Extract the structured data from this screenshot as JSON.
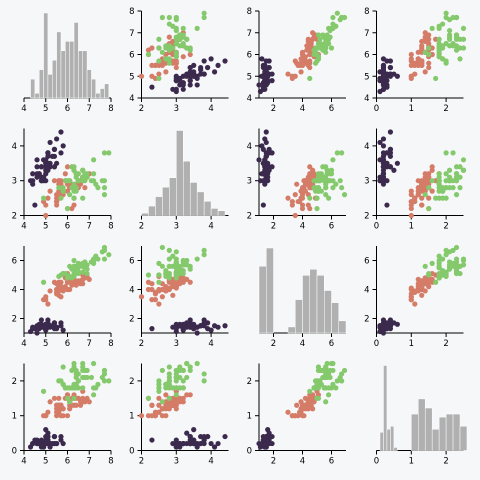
{
  "chart_data": {
    "type": "scatter",
    "layout": "scatter-matrix",
    "variables": [
      "var0",
      "var1",
      "var2",
      "var3"
    ],
    "groups": [
      {
        "id": "g0",
        "color": "#3b2a4d"
      },
      {
        "id": "g1",
        "color": "#d47c67"
      },
      {
        "id": "g2",
        "color": "#84c96b"
      }
    ],
    "axes": [
      {
        "domain": [
          4,
          8
        ],
        "ticks": [
          4,
          5,
          6,
          7,
          8
        ]
      },
      {
        "domain": [
          2,
          4.5
        ],
        "ticks": [
          2,
          3,
          4
        ]
      },
      {
        "domain": [
          1,
          7
        ],
        "ticks": [
          2,
          4,
          6
        ]
      },
      {
        "domain": [
          0,
          2.5
        ],
        "ticks": [
          0,
          1,
          2
        ]
      }
    ],
    "histograms": [
      {
        "variable": 0,
        "bins": [
          [
            4.3,
            4.5,
            4
          ],
          [
            4.5,
            4.7,
            1
          ],
          [
            4.7,
            4.9,
            6
          ],
          [
            4.9,
            5.1,
            18
          ],
          [
            5.1,
            5.3,
            5
          ],
          [
            5.3,
            5.5,
            8
          ],
          [
            5.5,
            5.7,
            14
          ],
          [
            5.7,
            5.9,
            10
          ],
          [
            5.9,
            6.1,
            12
          ],
          [
            6.1,
            6.3,
            12
          ],
          [
            6.3,
            6.5,
            16
          ],
          [
            6.5,
            6.7,
            10
          ],
          [
            6.7,
            6.9,
            10
          ],
          [
            6.9,
            7.1,
            6
          ],
          [
            7.1,
            7.3,
            4
          ],
          [
            7.3,
            7.5,
            1
          ],
          [
            7.5,
            7.7,
            2
          ],
          [
            7.7,
            7.9,
            3
          ]
        ]
      },
      {
        "variable": 1,
        "bins": [
          [
            2.0,
            2.2,
            1
          ],
          [
            2.2,
            2.4,
            4
          ],
          [
            2.4,
            2.6,
            8
          ],
          [
            2.6,
            2.8,
            12
          ],
          [
            2.8,
            3.0,
            16
          ],
          [
            3.0,
            3.2,
            36
          ],
          [
            3.2,
            3.4,
            23
          ],
          [
            3.4,
            3.6,
            14
          ],
          [
            3.6,
            3.8,
            10
          ],
          [
            3.8,
            4.0,
            6
          ],
          [
            4.0,
            4.2,
            3
          ],
          [
            4.2,
            4.4,
            2
          ]
        ]
      },
      {
        "variable": 2,
        "bins": [
          [
            1,
            1.5,
            22
          ],
          [
            1.5,
            2,
            28
          ],
          [
            2,
            2.5,
            0
          ],
          [
            2.5,
            3,
            0
          ],
          [
            3,
            3.5,
            2
          ],
          [
            3.5,
            4,
            11
          ],
          [
            4,
            4.5,
            19
          ],
          [
            4.5,
            5,
            21
          ],
          [
            5,
            5.5,
            19
          ],
          [
            5.5,
            6,
            14
          ],
          [
            6,
            6.5,
            10
          ],
          [
            6.5,
            7,
            4
          ]
        ]
      },
      {
        "variable": 3,
        "bins": [
          [
            0.1,
            0.2,
            6
          ],
          [
            0.2,
            0.3,
            28
          ],
          [
            0.3,
            0.4,
            7
          ],
          [
            0.4,
            0.5,
            8
          ],
          [
            0.5,
            0.6,
            1
          ],
          [
            0.6,
            0.8,
            0
          ],
          [
            1.0,
            1.2,
            12
          ],
          [
            1.2,
            1.4,
            17
          ],
          [
            1.4,
            1.6,
            14
          ],
          [
            1.6,
            1.8,
            7
          ],
          [
            1.8,
            2.0,
            11
          ],
          [
            2.0,
            2.2,
            12
          ],
          [
            2.2,
            2.4,
            12
          ],
          [
            2.4,
            2.6,
            8
          ]
        ]
      }
    ],
    "points": [
      [
        5.1,
        3.5,
        1.4,
        0.2,
        0
      ],
      [
        4.9,
        3.0,
        1.4,
        0.2,
        0
      ],
      [
        4.7,
        3.2,
        1.3,
        0.2,
        0
      ],
      [
        4.6,
        3.1,
        1.5,
        0.2,
        0
      ],
      [
        5.0,
        3.6,
        1.4,
        0.2,
        0
      ],
      [
        5.4,
        3.9,
        1.7,
        0.4,
        0
      ],
      [
        4.6,
        3.4,
        1.4,
        0.3,
        0
      ],
      [
        5.0,
        3.4,
        1.5,
        0.2,
        0
      ],
      [
        4.4,
        2.9,
        1.4,
        0.2,
        0
      ],
      [
        4.9,
        3.1,
        1.5,
        0.1,
        0
      ],
      [
        5.4,
        3.7,
        1.5,
        0.2,
        0
      ],
      [
        4.8,
        3.4,
        1.6,
        0.2,
        0
      ],
      [
        4.8,
        3.0,
        1.4,
        0.1,
        0
      ],
      [
        4.3,
        3.0,
        1.1,
        0.1,
        0
      ],
      [
        5.8,
        4.0,
        1.2,
        0.2,
        0
      ],
      [
        5.7,
        4.4,
        1.5,
        0.4,
        0
      ],
      [
        5.4,
        3.9,
        1.3,
        0.4,
        0
      ],
      [
        5.1,
        3.5,
        1.4,
        0.3,
        0
      ],
      [
        5.7,
        3.8,
        1.7,
        0.3,
        0
      ],
      [
        5.1,
        3.8,
        1.5,
        0.3,
        0
      ],
      [
        5.4,
        3.4,
        1.7,
        0.2,
        0
      ],
      [
        5.1,
        3.7,
        1.5,
        0.4,
        0
      ],
      [
        4.6,
        3.6,
        1.0,
        0.2,
        0
      ],
      [
        5.1,
        3.3,
        1.7,
        0.5,
        0
      ],
      [
        4.8,
        3.4,
        1.9,
        0.2,
        0
      ],
      [
        5.0,
        3.0,
        1.6,
        0.2,
        0
      ],
      [
        5.0,
        3.4,
        1.6,
        0.4,
        0
      ],
      [
        5.2,
        3.5,
        1.5,
        0.2,
        0
      ],
      [
        5.2,
        3.4,
        1.4,
        0.2,
        0
      ],
      [
        4.7,
        3.2,
        1.6,
        0.2,
        0
      ],
      [
        4.8,
        3.1,
        1.6,
        0.2,
        0
      ],
      [
        5.4,
        3.4,
        1.5,
        0.4,
        0
      ],
      [
        5.2,
        4.1,
        1.5,
        0.1,
        0
      ],
      [
        5.5,
        4.2,
        1.4,
        0.2,
        0
      ],
      [
        4.9,
        3.1,
        1.5,
        0.2,
        0
      ],
      [
        5.0,
        3.2,
        1.2,
        0.2,
        0
      ],
      [
        5.5,
        3.5,
        1.3,
        0.2,
        0
      ],
      [
        4.9,
        3.6,
        1.4,
        0.1,
        0
      ],
      [
        4.4,
        3.0,
        1.3,
        0.2,
        0
      ],
      [
        5.1,
        3.4,
        1.5,
        0.2,
        0
      ],
      [
        5.0,
        3.5,
        1.3,
        0.3,
        0
      ],
      [
        4.5,
        2.3,
        1.3,
        0.3,
        0
      ],
      [
        4.4,
        3.2,
        1.3,
        0.2,
        0
      ],
      [
        5.0,
        3.5,
        1.6,
        0.6,
        0
      ],
      [
        5.1,
        3.8,
        1.9,
        0.4,
        0
      ],
      [
        4.8,
        3.0,
        1.4,
        0.3,
        0
      ],
      [
        5.1,
        3.8,
        1.6,
        0.2,
        0
      ],
      [
        4.6,
        3.2,
        1.4,
        0.2,
        0
      ],
      [
        5.3,
        3.7,
        1.5,
        0.2,
        0
      ],
      [
        5.0,
        3.3,
        1.4,
        0.2,
        0
      ],
      [
        7.0,
        3.2,
        4.7,
        1.4,
        1
      ],
      [
        6.4,
        3.2,
        4.5,
        1.5,
        1
      ],
      [
        6.9,
        3.1,
        4.9,
        1.5,
        1
      ],
      [
        5.5,
        2.3,
        4.0,
        1.3,
        1
      ],
      [
        6.5,
        2.8,
        4.6,
        1.5,
        1
      ],
      [
        5.7,
        2.8,
        4.5,
        1.3,
        1
      ],
      [
        6.3,
        3.3,
        4.7,
        1.6,
        1
      ],
      [
        4.9,
        2.4,
        3.3,
        1.0,
        1
      ],
      [
        6.6,
        2.9,
        4.6,
        1.3,
        1
      ],
      [
        5.2,
        2.7,
        3.9,
        1.4,
        1
      ],
      [
        5.0,
        2.0,
        3.5,
        1.0,
        1
      ],
      [
        5.9,
        3.0,
        4.2,
        1.5,
        1
      ],
      [
        6.0,
        2.2,
        4.0,
        1.0,
        1
      ],
      [
        6.1,
        2.9,
        4.7,
        1.4,
        1
      ],
      [
        5.6,
        2.9,
        3.6,
        1.3,
        1
      ],
      [
        6.7,
        3.1,
        4.4,
        1.4,
        1
      ],
      [
        5.6,
        3.0,
        4.5,
        1.5,
        1
      ],
      [
        5.8,
        2.7,
        4.1,
        1.0,
        1
      ],
      [
        6.2,
        2.2,
        4.5,
        1.5,
        1
      ],
      [
        5.6,
        2.5,
        3.9,
        1.1,
        1
      ],
      [
        5.9,
        3.2,
        4.8,
        1.8,
        1
      ],
      [
        6.1,
        2.8,
        4.0,
        1.3,
        1
      ],
      [
        6.3,
        2.5,
        4.9,
        1.5,
        1
      ],
      [
        6.1,
        2.8,
        4.7,
        1.2,
        1
      ],
      [
        6.4,
        2.9,
        4.3,
        1.3,
        1
      ],
      [
        6.6,
        3.0,
        4.4,
        1.4,
        1
      ],
      [
        6.8,
        2.8,
        4.8,
        1.4,
        1
      ],
      [
        6.7,
        3.0,
        5.0,
        1.7,
        1
      ],
      [
        6.0,
        2.9,
        4.5,
        1.5,
        1
      ],
      [
        5.7,
        2.6,
        3.5,
        1.0,
        1
      ],
      [
        5.5,
        2.4,
        3.8,
        1.1,
        1
      ],
      [
        5.5,
        2.4,
        3.7,
        1.0,
        1
      ],
      [
        5.8,
        2.7,
        3.9,
        1.2,
        1
      ],
      [
        6.0,
        2.7,
        5.1,
        1.6,
        1
      ],
      [
        5.4,
        3.0,
        4.5,
        1.5,
        1
      ],
      [
        6.0,
        3.4,
        4.5,
        1.6,
        1
      ],
      [
        6.7,
        3.1,
        4.7,
        1.5,
        1
      ],
      [
        6.3,
        2.3,
        4.4,
        1.3,
        1
      ],
      [
        5.6,
        3.0,
        4.1,
        1.3,
        1
      ],
      [
        5.5,
        2.5,
        4.0,
        1.3,
        1
      ],
      [
        5.5,
        2.6,
        4.4,
        1.2,
        1
      ],
      [
        6.1,
        3.0,
        4.6,
        1.4,
        1
      ],
      [
        5.8,
        2.6,
        4.0,
        1.2,
        1
      ],
      [
        5.0,
        2.3,
        3.3,
        1.0,
        1
      ],
      [
        5.6,
        2.7,
        4.2,
        1.3,
        1
      ],
      [
        5.7,
        3.0,
        4.2,
        1.2,
        1
      ],
      [
        5.7,
        2.9,
        4.2,
        1.3,
        1
      ],
      [
        6.2,
        2.9,
        4.3,
        1.3,
        1
      ],
      [
        5.1,
        2.5,
        3.0,
        1.1,
        1
      ],
      [
        5.7,
        2.8,
        4.1,
        1.3,
        1
      ],
      [
        6.3,
        3.3,
        6.0,
        2.5,
        2
      ],
      [
        5.8,
        2.7,
        5.1,
        1.9,
        2
      ],
      [
        7.1,
        3.0,
        5.9,
        2.1,
        2
      ],
      [
        6.3,
        2.9,
        5.6,
        1.8,
        2
      ],
      [
        6.5,
        3.0,
        5.8,
        2.2,
        2
      ],
      [
        7.6,
        3.0,
        6.6,
        2.1,
        2
      ],
      [
        4.9,
        2.5,
        4.5,
        1.7,
        2
      ],
      [
        7.3,
        2.9,
        6.3,
        1.8,
        2
      ],
      [
        6.7,
        2.5,
        5.8,
        1.8,
        2
      ],
      [
        7.2,
        3.6,
        6.1,
        2.5,
        2
      ],
      [
        6.5,
        3.2,
        5.1,
        2.0,
        2
      ],
      [
        6.4,
        2.7,
        5.3,
        1.9,
        2
      ],
      [
        6.8,
        3.0,
        5.5,
        2.1,
        2
      ],
      [
        5.7,
        2.5,
        5.0,
        2.0,
        2
      ],
      [
        5.8,
        2.8,
        5.1,
        2.4,
        2
      ],
      [
        6.4,
        3.2,
        5.3,
        2.3,
        2
      ],
      [
        6.5,
        3.0,
        5.5,
        1.8,
        2
      ],
      [
        7.7,
        3.8,
        6.7,
        2.2,
        2
      ],
      [
        7.7,
        2.6,
        6.9,
        2.3,
        2
      ],
      [
        6.0,
        2.2,
        5.0,
        1.5,
        2
      ],
      [
        6.9,
        3.2,
        5.7,
        2.3,
        2
      ],
      [
        5.6,
        2.8,
        4.9,
        2.0,
        2
      ],
      [
        7.7,
        2.8,
        6.7,
        2.0,
        2
      ],
      [
        6.3,
        2.7,
        4.9,
        1.8,
        2
      ],
      [
        6.7,
        3.3,
        5.7,
        2.1,
        2
      ],
      [
        7.2,
        3.2,
        6.0,
        1.8,
        2
      ],
      [
        6.2,
        2.8,
        4.8,
        1.8,
        2
      ],
      [
        6.1,
        3.0,
        4.9,
        1.8,
        2
      ],
      [
        6.4,
        2.8,
        5.6,
        2.1,
        2
      ],
      [
        7.2,
        3.0,
        5.8,
        1.6,
        2
      ],
      [
        7.4,
        2.8,
        6.1,
        1.9,
        2
      ],
      [
        7.9,
        3.8,
        6.4,
        2.0,
        2
      ],
      [
        6.4,
        2.8,
        5.6,
        2.2,
        2
      ],
      [
        6.3,
        2.8,
        5.1,
        1.5,
        2
      ],
      [
        6.1,
        2.6,
        5.6,
        1.4,
        2
      ],
      [
        7.7,
        3.0,
        6.1,
        2.3,
        2
      ],
      [
        6.3,
        3.4,
        5.6,
        2.4,
        2
      ],
      [
        6.4,
        3.1,
        5.5,
        1.8,
        2
      ],
      [
        6.0,
        3.0,
        4.8,
        1.8,
        2
      ],
      [
        6.9,
        3.1,
        5.4,
        2.1,
        2
      ],
      [
        6.7,
        3.1,
        5.6,
        2.4,
        2
      ],
      [
        6.9,
        3.1,
        5.1,
        2.3,
        2
      ],
      [
        5.8,
        2.7,
        5.1,
        1.9,
        2
      ],
      [
        6.8,
        3.2,
        5.9,
        2.3,
        2
      ],
      [
        6.7,
        3.3,
        5.7,
        2.5,
        2
      ],
      [
        6.7,
        3.0,
        5.2,
        2.3,
        2
      ],
      [
        6.3,
        2.5,
        5.0,
        1.9,
        2
      ],
      [
        6.5,
        3.0,
        5.2,
        2.0,
        2
      ],
      [
        6.2,
        3.4,
        5.4,
        2.3,
        2
      ],
      [
        5.9,
        3.0,
        5.1,
        1.8,
        2
      ]
    ]
  }
}
